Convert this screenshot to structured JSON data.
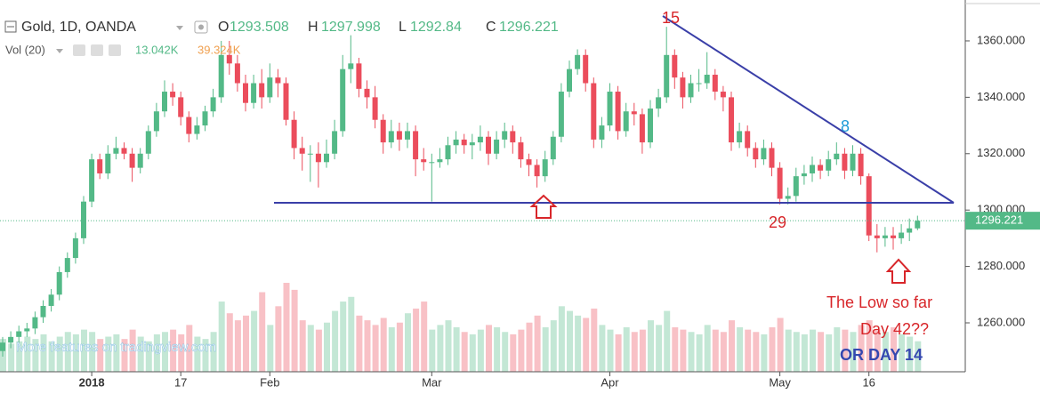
{
  "chart_data": {
    "type": "candlestick",
    "title": "Gold, 1D, OANDA",
    "open_label": "O",
    "high_label": "H",
    "low_label": "L",
    "close_label": "C",
    "volume_title": "Vol (20)",
    "volume_label": "13.042K",
    "volume_ma_label": "39.324K",
    "up_color": "#53b987",
    "down_color": "#eb4d5c",
    "ylim": [
      1242.65,
      1374.5
    ],
    "yticks": [
      {
        "value": 1260,
        "label": "1260.000"
      },
      {
        "value": 1280,
        "label": "1280.000"
      },
      {
        "value": 1300,
        "label": "1300.000"
      },
      {
        "value": 1320,
        "label": "1320.000"
      },
      {
        "value": 1340,
        "label": "1340.000"
      },
      {
        "value": 1360,
        "label": "1360.000"
      }
    ],
    "xticks": [
      {
        "value": 11,
        "label": "2018"
      },
      {
        "value": 22,
        "label": "17"
      },
      {
        "value": 33,
        "label": "Feb"
      },
      {
        "value": 53,
        "label": "Mar"
      },
      {
        "value": 75,
        "label": "Apr"
      },
      {
        "value": 96,
        "label": "May"
      },
      {
        "value": 107,
        "label": "16"
      }
    ],
    "open": [
      1250,
      1253,
      1255,
      1257,
      1258,
      1262,
      1266,
      1270,
      1278,
      1283,
      1290,
      1303,
      1318,
      1313,
      1320,
      1322,
      1320,
      1315,
      1320,
      1328,
      1335,
      1342,
      1340,
      1333,
      1327,
      1330,
      1335,
      1340,
      1355,
      1352,
      1345,
      1338,
      1345,
      1340,
      1347,
      1345,
      1332,
      1322,
      1320,
      1320,
      1317,
      1320,
      1328,
      1350,
      1352,
      1343,
      1340,
      1332,
      1324,
      1328,
      1325,
      1328,
      1318,
      1317,
      1317,
      1318,
      1323,
      1325,
      1323,
      1324,
      1326,
      1320,
      1325,
      1328,
      1324,
      1318,
      1316,
      1312,
      1318,
      1326,
      1342,
      1350,
      1355,
      1345,
      1325,
      1330,
      1342,
      1328,
      1335,
      1334,
      1324,
      1336,
      1340,
      1355,
      1347,
      1340,
      1345,
      1345,
      1348,
      1342,
      1340,
      1324,
      1328,
      1322,
      1318,
      1322,
      1315,
      1304,
      1305,
      1312,
      1313,
      1316,
      1314,
      1318,
      1320,
      1314,
      1320,
      1312,
      1291,
      1290,
      1291,
      1290,
      1292,
      1293.508
    ],
    "high": [
      1255,
      1257,
      1259,
      1260,
      1264,
      1268,
      1272,
      1280,
      1285,
      1292,
      1305,
      1320,
      1320,
      1323,
      1326,
      1324,
      1322,
      1322,
      1330,
      1338,
      1346,
      1345,
      1342,
      1335,
      1333,
      1337,
      1343,
      1360,
      1360,
      1355,
      1348,
      1348,
      1350,
      1352,
      1350,
      1347,
      1335,
      1326,
      1323,
      1324,
      1325,
      1332,
      1355,
      1362,
      1354,
      1346,
      1344,
      1334,
      1332,
      1331,
      1331,
      1330,
      1322,
      1320,
      1322,
      1326,
      1328,
      1327,
      1327,
      1330,
      1328,
      1328,
      1331,
      1330,
      1326,
      1320,
      1318,
      1321,
      1328,
      1345,
      1353,
      1357,
      1357,
      1347,
      1333,
      1345,
      1344,
      1338,
      1338,
      1336,
      1339,
      1343,
      1365,
      1357,
      1349,
      1348,
      1350,
      1356,
      1350,
      1344,
      1342,
      1331,
      1330,
      1324,
      1325,
      1324,
      1317,
      1308,
      1315,
      1316,
      1319,
      1318,
      1321,
      1324,
      1322,
      1323,
      1322,
      1313,
      1295,
      1294,
      1294,
      1295,
      1297,
      1297.998
    ],
    "low": [
      1248,
      1251,
      1253,
      1255,
      1256,
      1260,
      1264,
      1268,
      1276,
      1281,
      1288,
      1301,
      1311,
      1311,
      1318,
      1318,
      1310,
      1313,
      1318,
      1326,
      1333,
      1337,
      1330,
      1324,
      1325,
      1328,
      1333,
      1338,
      1348,
      1342,
      1335,
      1336,
      1336,
      1338,
      1340,
      1330,
      1318,
      1314,
      1310,
      1308,
      1315,
      1318,
      1326,
      1345,
      1340,
      1336,
      1329,
      1320,
      1322,
      1321,
      1322,
      1312,
      1314,
      1303,
      1315,
      1316,
      1320,
      1320,
      1318,
      1321,
      1316,
      1318,
      1322,
      1320,
      1315,
      1312,
      1308,
      1310,
      1316,
      1324,
      1340,
      1348,
      1342,
      1322,
      1322,
      1328,
      1325,
      1326,
      1330,
      1320,
      1322,
      1333,
      1338,
      1343,
      1336,
      1338,
      1342,
      1343,
      1339,
      1335,
      1321,
      1322,
      1319,
      1315,
      1316,
      1312,
      1302,
      1302,
      1303,
      1309,
      1310,
      1311,
      1312,
      1316,
      1311,
      1312,
      1309,
      1289,
      1285,
      1287,
      1286,
      1288,
      1289,
      1292.84
    ],
    "close": [
      1253,
      1255,
      1257,
      1258,
      1262,
      1266,
      1270,
      1278,
      1283,
      1290,
      1303,
      1318,
      1313,
      1320,
      1322,
      1320,
      1315,
      1320,
      1328,
      1335,
      1342,
      1340,
      1333,
      1327,
      1330,
      1335,
      1340,
      1355,
      1352,
      1345,
      1338,
      1345,
      1340,
      1347,
      1345,
      1332,
      1322,
      1320,
      1320,
      1317,
      1320,
      1328,
      1350,
      1352,
      1343,
      1340,
      1332,
      1324,
      1328,
      1325,
      1328,
      1318,
      1317,
      1317,
      1318,
      1323,
      1325,
      1323,
      1324,
      1326,
      1320,
      1325,
      1328,
      1324,
      1318,
      1316,
      1312,
      1318,
      1326,
      1342,
      1350,
      1355,
      1345,
      1325,
      1330,
      1342,
      1328,
      1335,
      1334,
      1324,
      1336,
      1340,
      1355,
      1347,
      1340,
      1345,
      1345,
      1348,
      1342,
      1340,
      1324,
      1328,
      1322,
      1318,
      1322,
      1315,
      1304,
      1305,
      1312,
      1313,
      1316,
      1314,
      1318,
      1320,
      1314,
      1320,
      1312,
      1291,
      1290,
      1291,
      1290,
      1292,
      1293.508,
      1296.221
    ],
    "volume": [
      14,
      12,
      13,
      15,
      14,
      16,
      13,
      15,
      17,
      16,
      18,
      17,
      14,
      15,
      16,
      14,
      18,
      15,
      13,
      16,
      17,
      18,
      16,
      20,
      15,
      14,
      17,
      30,
      25,
      22,
      24,
      26,
      34,
      20,
      28,
      38,
      35,
      22,
      20,
      18,
      21,
      26,
      30,
      32,
      24,
      22,
      20,
      23,
      19,
      21,
      25,
      27,
      30,
      18,
      20,
      22,
      19,
      17,
      16,
      18,
      20,
      19,
      17,
      16,
      18,
      21,
      24,
      19,
      22,
      28,
      26,
      24,
      23,
      27,
      20,
      18,
      16,
      19,
      17,
      18,
      22,
      20,
      26,
      19,
      18,
      17,
      16,
      20,
      18,
      17,
      22,
      19,
      18,
      17,
      16,
      19,
      23,
      18,
      17,
      16,
      18,
      17,
      16,
      19,
      18,
      17,
      20,
      22,
      18,
      17,
      19,
      16,
      15,
      13.042
    ],
    "annotations": [
      "15",
      "8",
      "29",
      "The Low so far",
      "Day 42??",
      "OR DAY 14"
    ],
    "footer": "More features on tradingview.com"
  }
}
